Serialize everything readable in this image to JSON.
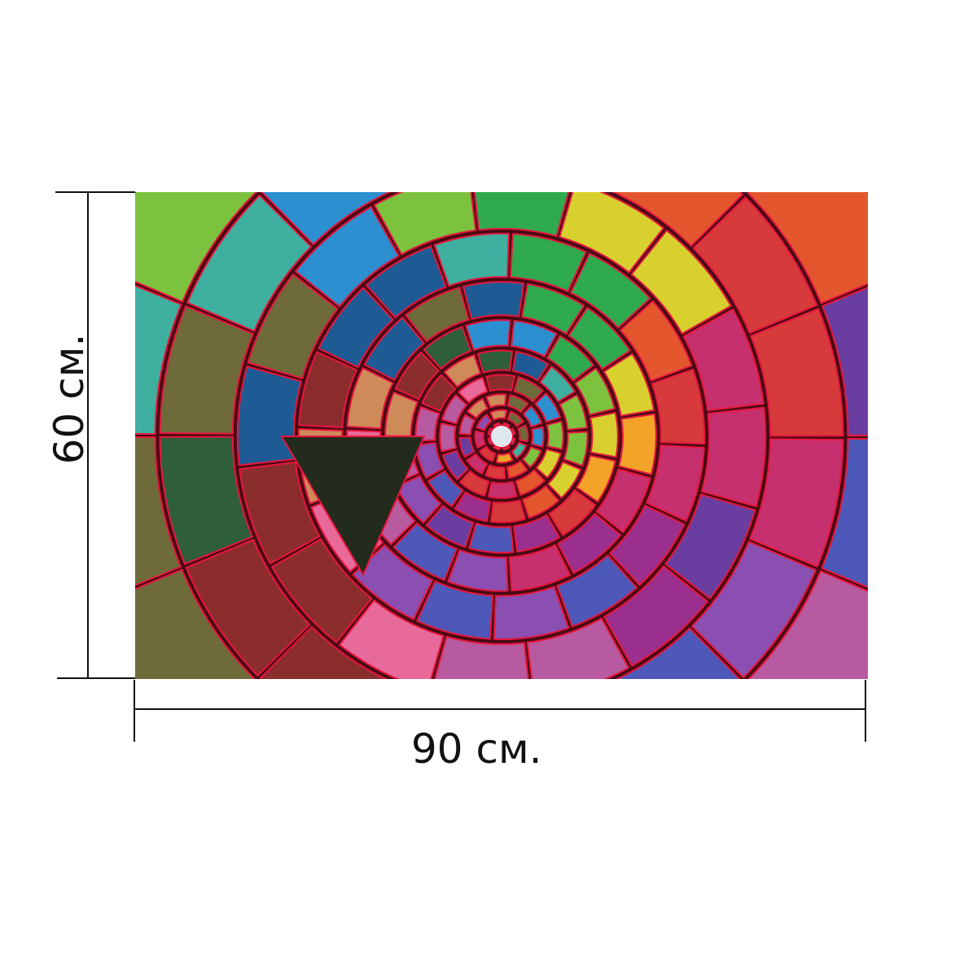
{
  "product": {
    "width_label": "90 см.",
    "height_label": "60 см.",
    "image_subject": "mosaic-stained-glass-wheel"
  },
  "colors": {
    "ink": "#111111",
    "grout": "#e8163e",
    "grout_dark": "#4a0a14",
    "wedge_dark": "#232b1d",
    "palette": [
      "#1e5b94",
      "#2b8fd0",
      "#3fb0a0",
      "#2faa4f",
      "#7dc23e",
      "#d8d02e",
      "#f3a428",
      "#e4572e",
      "#d63a3a",
      "#c7306e",
      "#9b2f8e",
      "#6a3ea0",
      "#4e58b8",
      "#8a4fb0",
      "#b85aa0",
      "#e86a9a",
      "#cf8a5a",
      "#8c2d2d",
      "#2e5e3a",
      "#6f6a3a"
    ]
  }
}
